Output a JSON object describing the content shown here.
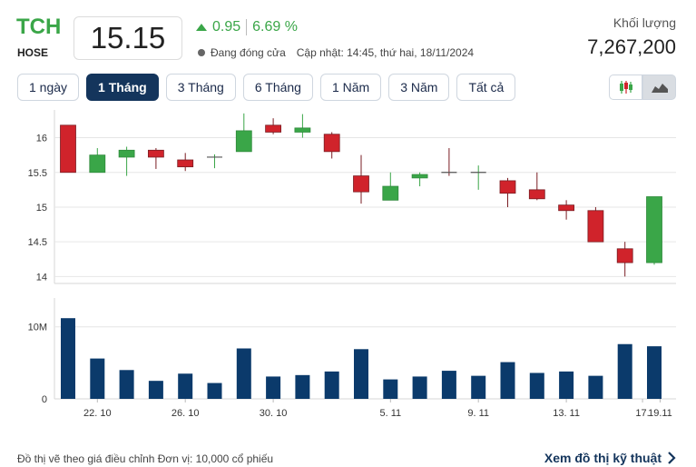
{
  "header": {
    "ticker": "TCH",
    "exchange": "HOSE",
    "price": "15.15",
    "change": "0.95",
    "change_pct": "6.69 %",
    "status": "Đang đóng cửa",
    "updated": "Cập nhật: 14:45, thứ hai, 18/11/2024",
    "volume_label": "Khối lượng",
    "volume_value": "7,267,200"
  },
  "tabs": [
    "1 ngày",
    "1 Tháng",
    "3 Tháng",
    "6 Tháng",
    "1 Năm",
    "3 Năm",
    "Tất cả"
  ],
  "active_tab": "1 Tháng",
  "chart_type_buttons": [
    "candlestick-icon",
    "area-chart-icon"
  ],
  "footer": {
    "note": "Đồ thị vẽ theo giá điều chỉnh  Đơn vị: 10,000 cổ phiếu",
    "link": "Xem đồ thị kỹ thuật"
  },
  "colors": {
    "up": "#3aa648",
    "down": "#d0232b",
    "volume": "#0b3a6b",
    "brand": "#14355c"
  },
  "chart_data": {
    "type": "candlestick",
    "x_tick_labels": [
      "22. 10",
      "26. 10",
      "30. 10",
      "5. 11",
      "9. 11",
      "13. 11",
      "17.",
      "19.11"
    ],
    "x_tick_index": [
      1,
      4,
      7,
      11,
      14,
      17,
      19.6,
      20.2
    ],
    "y_ticks": [
      14,
      14.5,
      15,
      15.5,
      16
    ],
    "ylim": [
      13.9,
      16.4
    ],
    "volume_ticks": [
      "0",
      "10M"
    ],
    "volume_max": 14,
    "candles": [
      {
        "o": 16.18,
        "c": 15.5,
        "h": 16.18,
        "l": 15.5,
        "v": 11.2
      },
      {
        "o": 15.5,
        "c": 15.75,
        "h": 15.85,
        "l": 15.5,
        "v": 5.6
      },
      {
        "o": 15.72,
        "c": 15.82,
        "h": 15.87,
        "l": 15.45,
        "v": 4.0
      },
      {
        "o": 15.82,
        "c": 15.72,
        "h": 15.85,
        "l": 15.55,
        "v": 2.5
      },
      {
        "o": 15.68,
        "c": 15.58,
        "h": 15.78,
        "l": 15.52,
        "v": 3.5
      },
      {
        "o": 15.7,
        "c": 15.72,
        "h": 15.76,
        "l": 15.56,
        "v": 2.2
      },
      {
        "o": 15.8,
        "c": 16.1,
        "h": 16.35,
        "l": 15.8,
        "v": 7.0
      },
      {
        "o": 16.18,
        "c": 16.08,
        "h": 16.28,
        "l": 16.05,
        "v": 3.1
      },
      {
        "o": 16.08,
        "c": 16.14,
        "h": 16.34,
        "l": 16.0,
        "v": 3.3
      },
      {
        "o": 16.05,
        "c": 15.8,
        "h": 16.08,
        "l": 15.7,
        "v": 3.8
      },
      {
        "o": 15.45,
        "c": 15.22,
        "h": 15.75,
        "l": 15.05,
        "v": 6.9
      },
      {
        "o": 15.1,
        "c": 15.3,
        "h": 15.5,
        "l": 15.1,
        "v": 2.7
      },
      {
        "o": 15.42,
        "c": 15.47,
        "h": 15.5,
        "l": 15.3,
        "v": 3.1
      },
      {
        "o": 15.5,
        "c": 15.48,
        "h": 15.85,
        "l": 15.45,
        "v": 3.9
      },
      {
        "o": 15.5,
        "c": 15.5,
        "h": 15.6,
        "l": 15.25,
        "v": 3.2
      },
      {
        "o": 15.38,
        "c": 15.2,
        "h": 15.42,
        "l": 15.0,
        "v": 5.1
      },
      {
        "o": 15.25,
        "c": 15.12,
        "h": 15.5,
        "l": 15.1,
        "v": 3.6
      },
      {
        "o": 15.03,
        "c": 14.95,
        "h": 15.1,
        "l": 14.82,
        "v": 3.8
      },
      {
        "o": 14.95,
        "c": 14.5,
        "h": 15.0,
        "l": 14.5,
        "v": 3.2
      },
      {
        "o": 14.4,
        "c": 14.2,
        "h": 14.5,
        "l": 14.0,
        "v": 7.6
      },
      {
        "o": 14.2,
        "c": 15.15,
        "h": 15.15,
        "l": 14.17,
        "v": 7.3
      }
    ]
  }
}
